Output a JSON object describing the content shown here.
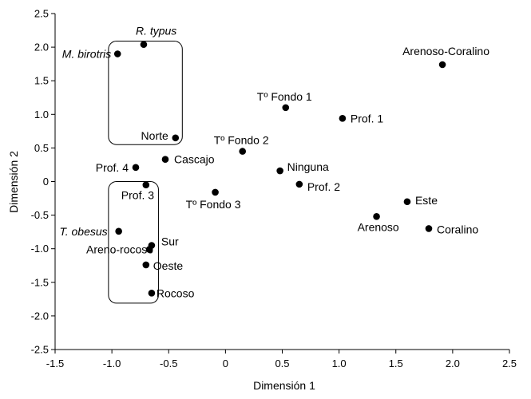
{
  "chart_data": {
    "type": "scatter",
    "title": "",
    "xlabel": "Dimensión 1",
    "ylabel": "Dimensión 2",
    "xlim": [
      -1.5,
      2.5
    ],
    "ylim": [
      -2.5,
      2.5
    ],
    "x_ticks": [
      "-1.5",
      "-1.0",
      "-0.5",
      "0",
      "0.5",
      "1.0",
      "1.5",
      "2.0",
      "2.5"
    ],
    "y_ticks": [
      "2.5",
      "2.0",
      "1.5",
      "1.0",
      "0.5",
      "0",
      "-0.5",
      "-1.0",
      "-1.5",
      "-2.0",
      "-2.5"
    ],
    "grid": false,
    "points": [
      {
        "label": "R. typus",
        "x": -0.72,
        "y": 2.04,
        "italic": true
      },
      {
        "label": "M. birotris",
        "x": -0.95,
        "y": 1.9,
        "italic": true
      },
      {
        "label": "Norte",
        "x": -0.44,
        "y": 0.65,
        "italic": false
      },
      {
        "label": "Cascajo",
        "x": -0.53,
        "y": 0.33,
        "italic": false
      },
      {
        "label": "Prof. 4",
        "x": -0.79,
        "y": 0.21,
        "italic": false
      },
      {
        "label": "Prof. 3",
        "x": -0.7,
        "y": -0.05,
        "italic": false
      },
      {
        "label": "T. obesus",
        "x": -0.94,
        "y": -0.74,
        "italic": true
      },
      {
        "label": "Sur",
        "x": -0.65,
        "y": -0.95,
        "italic": false
      },
      {
        "label": "Areno-rocoso",
        "x": -0.67,
        "y": -1.01,
        "italic": false
      },
      {
        "label": "Oeste",
        "x": -0.7,
        "y": -1.24,
        "italic": false
      },
      {
        "label": "Rocoso",
        "x": -0.65,
        "y": -1.66,
        "italic": false
      },
      {
        "label": "Tº Fondo 1",
        "x": 0.53,
        "y": 1.1,
        "italic": false
      },
      {
        "label": "Prof. 1",
        "x": 1.03,
        "y": 0.94,
        "italic": false
      },
      {
        "label": "Tº Fondo 2",
        "x": 0.15,
        "y": 0.45,
        "italic": false
      },
      {
        "label": "Ninguna",
        "x": 0.48,
        "y": 0.16,
        "italic": false
      },
      {
        "label": "Prof. 2",
        "x": 0.65,
        "y": -0.04,
        "italic": false
      },
      {
        "label": "Tº Fondo 3",
        "x": -0.09,
        "y": -0.16,
        "italic": false
      },
      {
        "label": "Arenoso-Coralino",
        "x": 1.91,
        "y": 1.74,
        "italic": false
      },
      {
        "label": "Este",
        "x": 1.6,
        "y": -0.3,
        "italic": false
      },
      {
        "label": "Arenoso",
        "x": 1.33,
        "y": -0.52,
        "italic": false
      },
      {
        "label": "Coralino",
        "x": 1.79,
        "y": -0.7,
        "italic": false
      }
    ],
    "groups": [
      {
        "name": "upper-left-cluster",
        "x_range": [
          -1.03,
          -0.38
        ],
        "y_range": [
          0.55,
          2.09
        ]
      },
      {
        "name": "lower-left-cluster",
        "x_range": [
          -1.03,
          -0.59
        ],
        "y_range": [
          -1.81,
          0.0
        ]
      }
    ]
  }
}
